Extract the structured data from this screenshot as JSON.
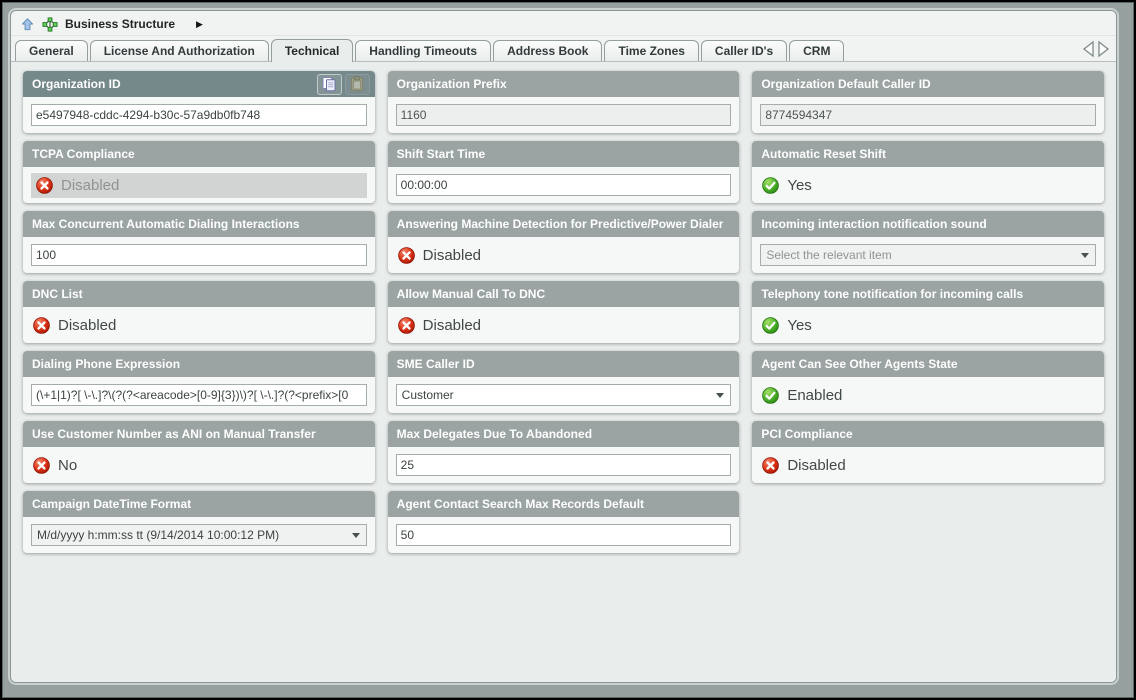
{
  "breadcrumb": {
    "title": "Business Structure",
    "arrow": "▶",
    "icons": [
      "up-arrow-icon",
      "business-structure-icon"
    ]
  },
  "tabs": [
    {
      "label": "General",
      "selected": false
    },
    {
      "label": "License And Authorization",
      "selected": false
    },
    {
      "label": "Technical",
      "selected": true
    },
    {
      "label": "Handling Timeouts",
      "selected": false
    },
    {
      "label": "Address Book",
      "selected": false
    },
    {
      "label": "Time Zones",
      "selected": false
    },
    {
      "label": "Caller ID's",
      "selected": false
    },
    {
      "label": "CRM",
      "selected": false
    }
  ],
  "tab_nav_icons": [
    "scroll-tabs-left-icon",
    "scroll-tabs-right-icon"
  ],
  "colors": {
    "header_bar": "#9ba4a3",
    "header_bar_focused": "#75888a",
    "card_body": "#f6f8f7",
    "content_background": "#e9edec",
    "status_red": "#d2301f",
    "status_green": "#44a82e",
    "disabled_control": "#d2d4d3"
  },
  "fields": [
    {
      "label": "Organization ID",
      "type": "text",
      "value": "e5497948-cddc-4294-b30c-57a9db0fb748",
      "header_dark": true,
      "header_icons": [
        "copy-icon",
        "paste-icon"
      ]
    },
    {
      "label": "Organization Prefix",
      "type": "text",
      "value": "1160",
      "readonly": true
    },
    {
      "label": "Organization Default Caller ID",
      "type": "text",
      "value": "8774594347",
      "readonly": true
    },
    {
      "label": "TCPA Compliance",
      "type": "status",
      "value": "Disabled",
      "icon": "red-x-icon",
      "grayed": true
    },
    {
      "label": "Shift Start Time",
      "type": "text",
      "value": "00:00:00"
    },
    {
      "label": "Automatic Reset Shift",
      "type": "status",
      "value": "Yes",
      "icon": "green-check-icon"
    },
    {
      "label": "Max Concurrent Automatic Dialing Interactions",
      "type": "text",
      "value": "100"
    },
    {
      "label": "Answering Machine Detection for Predictive/Power Dialer",
      "type": "status",
      "value": "Disabled",
      "icon": "red-x-icon"
    },
    {
      "label": "Incoming interaction notification sound",
      "type": "select",
      "value": "Select the relevant item",
      "gray_text": true,
      "gray_bg": true
    },
    {
      "label": "DNC List",
      "type": "status",
      "value": "Disabled",
      "icon": "red-x-icon"
    },
    {
      "label": "Allow Manual Call To DNC",
      "type": "status",
      "value": "Disabled",
      "icon": "red-x-icon"
    },
    {
      "label": "Telephony tone notification for incoming calls",
      "type": "status",
      "value": "Yes",
      "icon": "green-check-icon"
    },
    {
      "label": "Dialing Phone Expression",
      "type": "text",
      "value": "(\\+1|1)?[ \\-\\.]?\\(?(?<areacode>[0-9]{3})\\)?[ \\-\\.]?(?<prefix>[0"
    },
    {
      "label": "SME Caller ID",
      "type": "select",
      "value": "Customer"
    },
    {
      "label": "Agent Can See Other Agents State",
      "type": "status",
      "value": "Enabled",
      "icon": "green-check-icon"
    },
    {
      "label": "Use Customer Number as ANI on Manual Transfer",
      "type": "status",
      "value": "No",
      "icon": "red-x-icon"
    },
    {
      "label": "Max Delegates Due To Abandoned",
      "type": "text",
      "value": "25"
    },
    {
      "label": "PCI Compliance",
      "type": "status",
      "value": "Disabled",
      "icon": "red-x-icon"
    },
    {
      "label": "Campaign DateTime Format",
      "type": "select",
      "value": "M/d/yyyy h:mm:ss tt (9/14/2014 10:00:12 PM)",
      "gray_bg": true
    },
    {
      "label": "Agent Contact Search Max Records Default",
      "type": "text",
      "value": "50"
    }
  ]
}
